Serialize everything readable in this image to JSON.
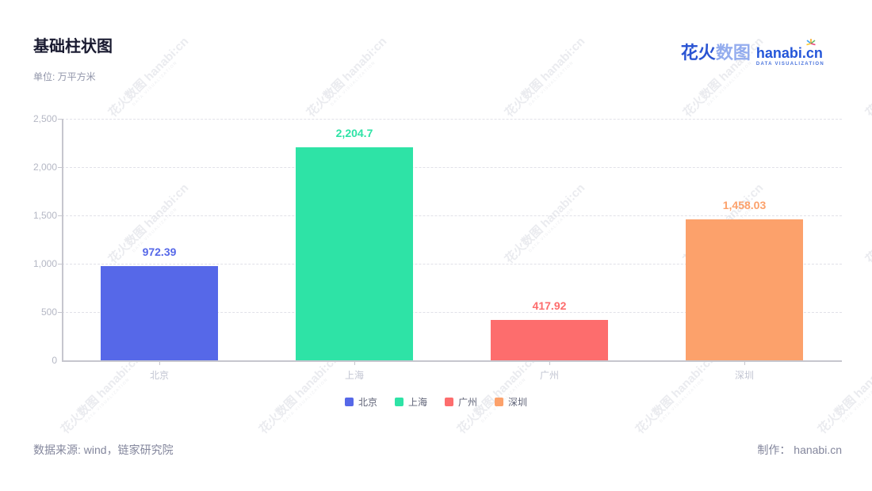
{
  "header": {
    "title": "基础柱状图",
    "unit_label": "单位: 万平方米",
    "logo": {
      "brand_cn_primary": "花火",
      "brand_cn_secondary": "数图",
      "brand_en": "hanabi.cn",
      "brand_tagline": "DATA VISUALIZATION"
    }
  },
  "footer": {
    "source": "数据来源: wind，链家研究院",
    "credit": "制作： hanabi.cn"
  },
  "watermark": {
    "text": "花火数图 hanabi:cn",
    "tagline": "DATA VISUALIZATION"
  },
  "chart_data": {
    "type": "bar",
    "title": "基础柱状图",
    "unit": "万平方米",
    "categories": [
      "北京",
      "上海",
      "广州",
      "深圳"
    ],
    "values": [
      972.39,
      2204.7,
      417.92,
      1458.03
    ],
    "value_labels": [
      "972.39",
      "2,204.7",
      "417.92",
      "1,458.03"
    ],
    "colors": [
      "#5668e8",
      "#2ee3a6",
      "#fd6d6d",
      "#fca16b"
    ],
    "y_ticks": [
      0,
      500,
      1000,
      1500,
      2000,
      2500
    ],
    "y_tick_labels": [
      "0",
      "500",
      "1,000",
      "1,500",
      "2,000",
      "2,500"
    ],
    "ylim": [
      0,
      2500
    ],
    "grid": "horizontal-dashed",
    "legend": [
      "北京",
      "上海",
      "广州",
      "深圳"
    ],
    "legend_position": "bottom"
  }
}
